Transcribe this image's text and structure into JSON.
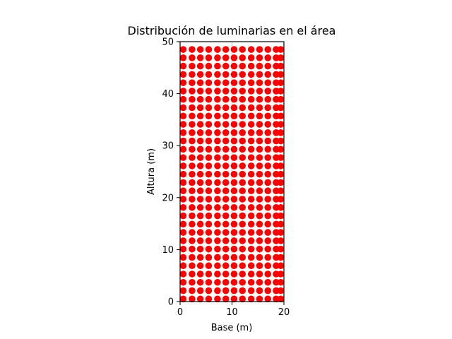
{
  "chart_data": {
    "type": "scatter",
    "title": "Distribución de luminarias en el área",
    "xlabel": "Base (m)",
    "ylabel": "Altura (m)",
    "xlim": [
      0,
      20
    ],
    "ylim": [
      0,
      50
    ],
    "xticks": [
      0,
      10,
      20
    ],
    "yticks": [
      0,
      10,
      20,
      30,
      40,
      50
    ],
    "grid": false,
    "legend": false,
    "marker_color": "#ff0000",
    "vertical_line": {
      "x": 10,
      "color": "#d3d3d3"
    },
    "grid_layout": {
      "x_positions": [
        0.6,
        2.3,
        3.9,
        5.5,
        7.2,
        8.8,
        10.4,
        12.0,
        13.7,
        15.3,
        16.9,
        18.5,
        19.4
      ],
      "y_start": 0.5,
      "y_step": 1.6,
      "rows": 31
    }
  }
}
